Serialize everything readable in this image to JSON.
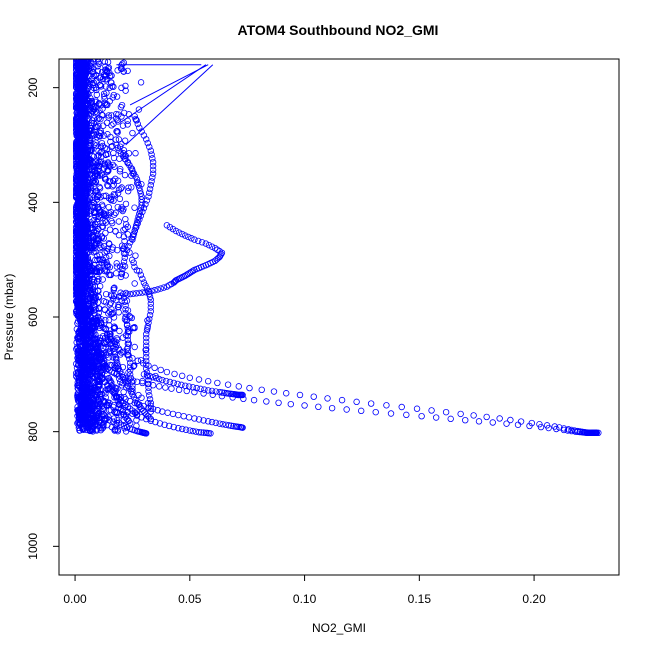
{
  "chart_data": {
    "type": "scatter",
    "title": "ATOM4 Southbound NO2_GMI",
    "xlabel": "NO2_GMI",
    "ylabel": "Pressure (mbar)",
    "xlim": [
      -0.007,
      0.237
    ],
    "ylim": [
      1050,
      150
    ],
    "y_reversed": true,
    "x_ticks": [
      0.0,
      0.05,
      0.1,
      0.15,
      0.2
    ],
    "x_tick_labels": [
      "0.00",
      "0.05",
      "0.10",
      "0.15",
      "0.20"
    ],
    "y_ticks": [
      200,
      400,
      600,
      800,
      1000
    ],
    "y_tick_labels": [
      "200",
      "400",
      "600",
      "800",
      "1000"
    ],
    "grid": false,
    "legend": "none",
    "marker": "open-circle",
    "color": "#0000ff",
    "series": [
      {
        "x": [
          0.003,
          0.003,
          0.004,
          0.004,
          0.005,
          0.005,
          0.006,
          0.006,
          0.007,
          0.007,
          0.008,
          0.009,
          0.01,
          0.011,
          0.013,
          0.015,
          0.018,
          0.022,
          0.027,
          0.034,
          0.042,
          0.052,
          0.064,
          0.078,
          0.094,
          0.112,
          0.131,
          0.151,
          0.17,
          0.188,
          0.203,
          0.213,
          0.218,
          0.221,
          0.223,
          0.225,
          0.226,
          0.227,
          0.227
        ],
        "y": [
          170,
          220,
          270,
          320,
          370,
          420,
          470,
          520,
          560,
          600,
          630,
          650,
          665,
          675,
          685,
          693,
          700,
          707,
          713,
          719,
          725,
          731,
          738,
          745,
          752,
          759,
          766,
          773,
          780,
          786,
          792,
          797,
          800,
          801,
          802,
          802,
          802,
          802,
          802
        ]
      },
      {
        "x": [
          0.01,
          0.014,
          0.019,
          0.025,
          0.032,
          0.04,
          0.05,
          0.062,
          0.076,
          0.092,
          0.11,
          0.129,
          0.149,
          0.168,
          0.185,
          0.199,
          0.209,
          0.215,
          0.219,
          0.222,
          0.224,
          0.226,
          0.228
        ],
        "y": [
          600,
          630,
          655,
          672,
          685,
          696,
          706,
          715,
          724,
          733,
          742,
          751,
          760,
          769,
          777,
          785,
          791,
          796,
          799,
          801,
          802,
          802,
          802
        ]
      },
      {
        "x": [
          0.03,
          0.034,
          0.038,
          0.043,
          0.048,
          0.053,
          0.058,
          0.063,
          0.066,
          0.068,
          0.07,
          0.071,
          0.072,
          0.073
        ],
        "y": [
          700,
          705,
          710,
          715,
          720,
          724,
          728,
          731,
          733,
          734,
          735,
          736,
          736,
          736
        ]
      },
      {
        "x": [
          0.02,
          0.026,
          0.032,
          0.038,
          0.045,
          0.052,
          0.058,
          0.063,
          0.067,
          0.07,
          0.072,
          0.073
        ],
        "y": [
          740,
          750,
          758,
          765,
          771,
          777,
          782,
          786,
          789,
          791,
          792,
          793
        ]
      },
      {
        "x": [
          0.015,
          0.021,
          0.027,
          0.033,
          0.039,
          0.045,
          0.05,
          0.054,
          0.057,
          0.059
        ],
        "y": [
          750,
          762,
          772,
          781,
          788,
          794,
          798,
          801,
          802,
          803
        ]
      },
      {
        "x": [
          0.01,
          0.015,
          0.02,
          0.024,
          0.027,
          0.029,
          0.03,
          0.031
        ],
        "y": [
          770,
          780,
          788,
          795,
          799,
          801,
          802,
          803
        ]
      },
      {
        "x": [
          0.04,
          0.044,
          0.048,
          0.052,
          0.057,
          0.061,
          0.064,
          0.063,
          0.061,
          0.058,
          0.055,
          0.052,
          0.05,
          0.048,
          0.046,
          0.044,
          0.043,
          0.04,
          0.036,
          0.032,
          0.028,
          0.024
        ],
        "y": [
          440,
          450,
          458,
          465,
          472,
          480,
          488,
          495,
          502,
          508,
          513,
          518,
          523,
          528,
          532,
          536,
          540,
          547,
          552,
          556,
          558,
          560
        ]
      },
      {
        "x": [
          0.026,
          0.028,
          0.031,
          0.033,
          0.034,
          0.034,
          0.033,
          0.032,
          0.03,
          0.028,
          0.026,
          0.024,
          0.022,
          0.021,
          0.02
        ],
        "y": [
          250,
          270,
          290,
          310,
          330,
          350,
          370,
          390,
          410,
          430,
          450,
          470,
          490,
          510,
          530
        ]
      },
      {
        "x": [
          0.018,
          0.02,
          0.023,
          0.025,
          0.027,
          0.028,
          0.029,
          0.029,
          0.028,
          0.027,
          0.026,
          0.025
        ],
        "y": [
          300,
          315,
          330,
          345,
          360,
          375,
          390,
          405,
          420,
          435,
          450,
          465
        ]
      },
      {
        "x": [
          0.028,
          0.03,
          0.032,
          0.033,
          0.033,
          0.032,
          0.031,
          0.031,
          0.031,
          0.031,
          0.032,
          0.032,
          0.033,
          0.033
        ],
        "y": [
          520,
          540,
          555,
          570,
          590,
          610,
          630,
          650,
          670,
          690,
          710,
          730,
          750,
          765
        ]
      },
      {
        "x": [
          0.021,
          0.022,
          0.022,
          0.023,
          0.023,
          0.023,
          0.024,
          0.024,
          0.025,
          0.025
        ],
        "y": [
          560,
          580,
          600,
          620,
          640,
          660,
          680,
          700,
          720,
          735
        ]
      },
      {
        "x": [
          0.015,
          0.016,
          0.017,
          0.018,
          0.019,
          0.021,
          0.023,
          0.025,
          0.027,
          0.029,
          0.031,
          0.033
        ],
        "y": [
          630,
          645,
          660,
          675,
          690,
          705,
          720,
          735,
          750,
          760,
          770,
          778
        ]
      },
      {
        "x": [
          0.008,
          0.01,
          0.012,
          0.014,
          0.016,
          0.018,
          0.02,
          0.022,
          0.024
        ],
        "y": [
          640,
          660,
          680,
          700,
          720,
          740,
          760,
          775,
          785
        ]
      },
      {
        "x": [
          0.006,
          0.009,
          0.012,
          0.015,
          0.018,
          0.021,
          0.024,
          0.027
        ],
        "y": [
          670,
          690,
          708,
          724,
          738,
          750,
          760,
          770
        ]
      }
    ],
    "background_cloud": {
      "x_range": [
        0.0,
        0.03
      ],
      "y_range": [
        150,
        800
      ]
    },
    "connecting_lines": [
      {
        "x": [
          0.018,
          0.055
        ],
        "y": [
          160,
          160
        ]
      },
      {
        "x": [
          0.02,
          0.057
        ],
        "y": [
          260,
          160
        ]
      },
      {
        "x": [
          0.022,
          0.06
        ],
        "y": [
          300,
          160
        ]
      },
      {
        "x": [
          0.024,
          0.058
        ],
        "y": [
          230,
          160
        ]
      }
    ]
  }
}
